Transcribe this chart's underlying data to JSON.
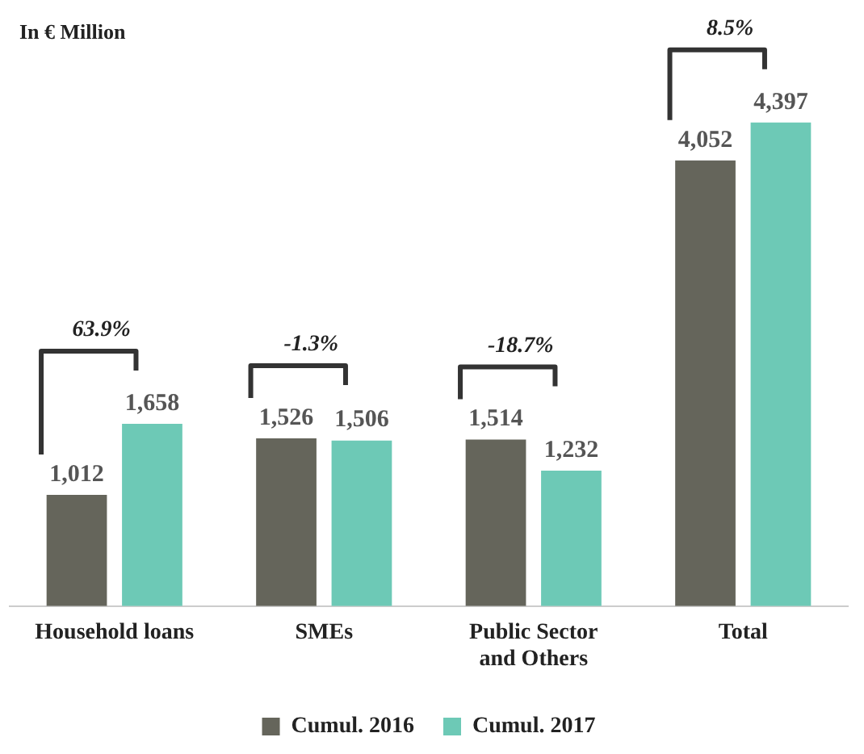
{
  "chart_data": {
    "type": "bar",
    "categories": [
      "Household loans",
      "SMEs",
      "Public Sector and Others",
      "Total"
    ],
    "series": [
      {
        "name": "Cumul. 2016",
        "color": "#65655b",
        "values": [
          1012,
          1526,
          1514,
          4052
        ],
        "value_labels": [
          "1,012",
          "1,526",
          "1,514",
          "4,052"
        ]
      },
      {
        "name": "Cumul. 2017",
        "color": "#6dc9b6",
        "values": [
          1658,
          1506,
          1232,
          4397
        ],
        "value_labels": [
          "1,658",
          "1,506",
          "1,232",
          "4,397"
        ]
      }
    ],
    "ylabel": "In € Million",
    "legend": "bottom",
    "grid": false,
    "annotations": [
      "63.9%",
      "-1.3%",
      "-18.7%",
      "8.5%"
    ]
  }
}
